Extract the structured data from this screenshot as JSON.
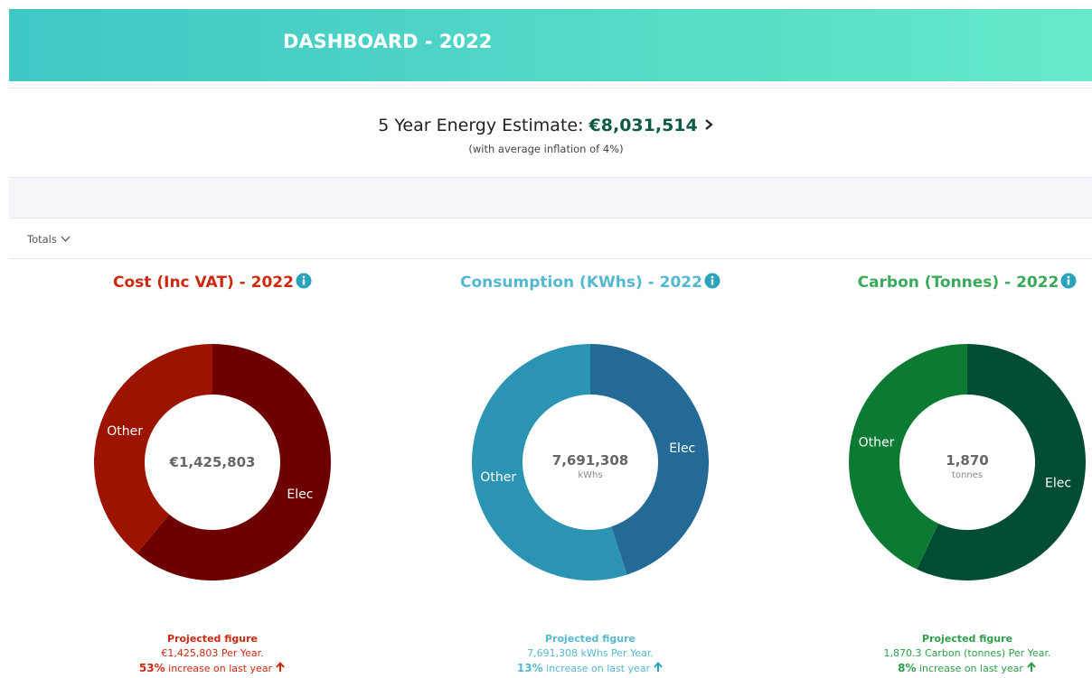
{
  "header": {
    "title": "DASHBOARD - 2022"
  },
  "estimate": {
    "label": "5 Year Energy Estimate:",
    "value": "€8,031,514",
    "note": "(with average inflation of 4%)"
  },
  "filter": {
    "label": "Totals"
  },
  "chart_data": [
    {
      "type": "pie",
      "title": "Cost (Inc VAT) - 2022",
      "categories": [
        "Elec",
        "Other"
      ],
      "values": [
        61,
        39
      ],
      "colors": [
        "#6e0000",
        "#9c1300"
      ],
      "center_value": "€1,425,803",
      "footer_heading": "Projected figure",
      "footer_amount": "€1,425,803 Per Year.",
      "footer_change": "53%",
      "footer_change_text": "increase on last year"
    },
    {
      "type": "pie",
      "title": "Consumption (KWhs) - 2022",
      "categories": [
        "Elec",
        "Other"
      ],
      "values": [
        45,
        55
      ],
      "colors": [
        "#236a96",
        "#2b94b3"
      ],
      "center_value": "7,691,308",
      "center_unit": "kWhs",
      "footer_heading": "Projected figure",
      "footer_amount": "7,691,308 kWhs Per Year.",
      "footer_change": "13%",
      "footer_change_text": "increase on last year"
    },
    {
      "type": "pie",
      "title": "Carbon (Tonnes) - 2022",
      "categories": [
        "Elec",
        "Other"
      ],
      "values": [
        57,
        43
      ],
      "colors": [
        "#004d33",
        "#0b7a33"
      ],
      "center_value": "1,870",
      "center_unit": "tonnes",
      "footer_heading": "Projected figure",
      "footer_amount": "1,870.3 Carbon (tonnes) Per Year.",
      "footer_change": "8%",
      "footer_change_text": "increase on last year"
    }
  ]
}
